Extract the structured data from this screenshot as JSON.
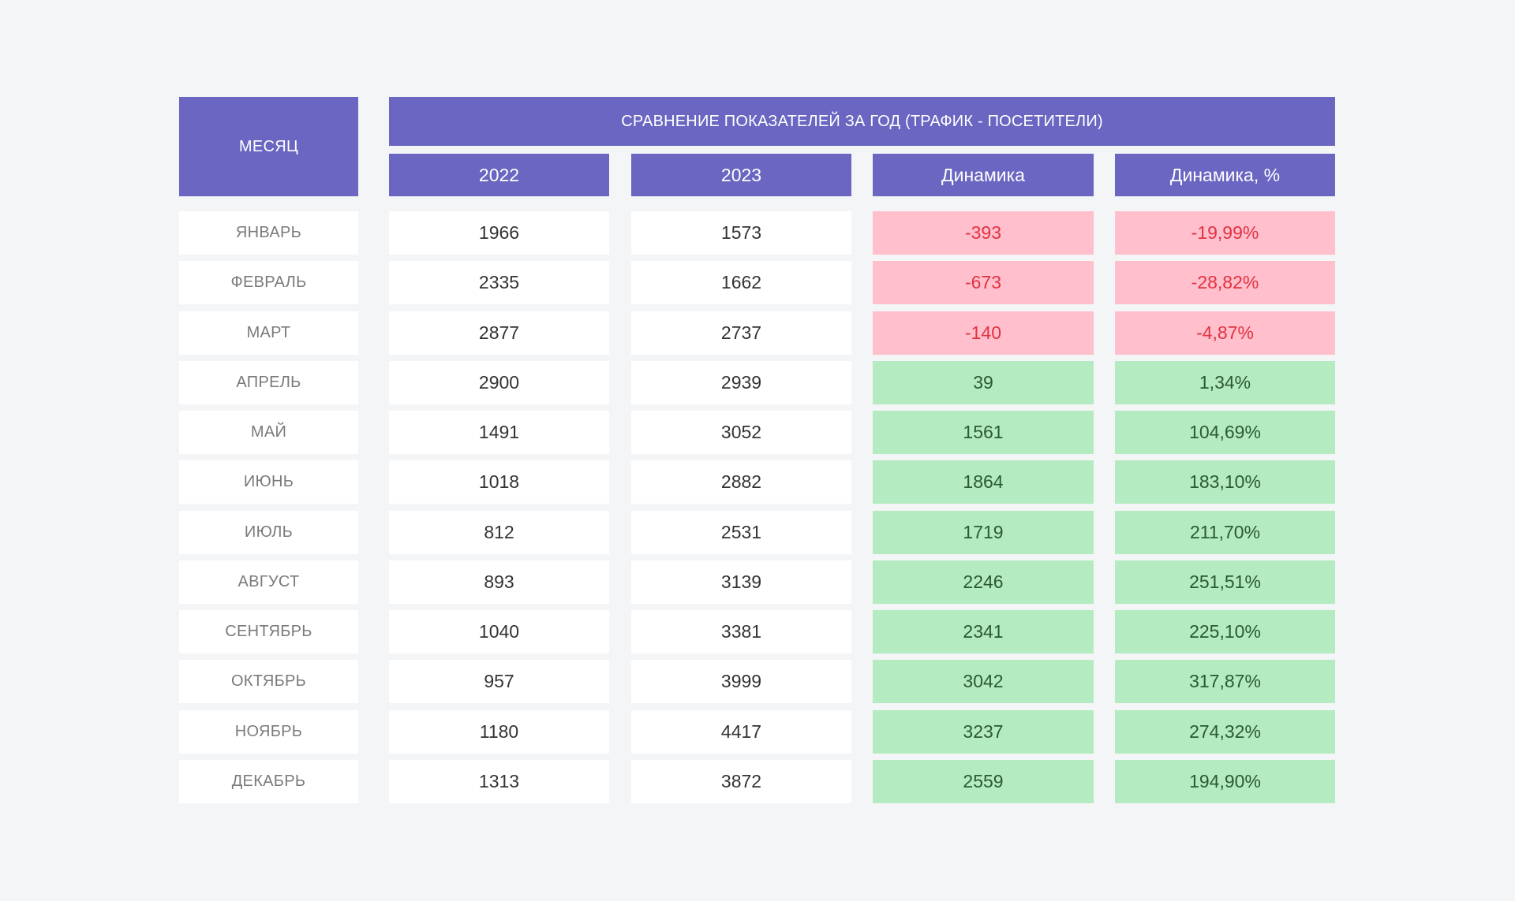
{
  "chart_data": {
    "type": "table",
    "title": "СРАВНЕНИЕ ПОКАЗАТЕЛЕЙ ЗА ГОД (ТРАФИК - ПОСЕТИТЕЛИ)",
    "month_header": "МЕСЯЦ",
    "columns": [
      "2022",
      "2023",
      "Динамика",
      "Динамика, %"
    ],
    "rows": [
      {
        "month": "ЯНВАРЬ",
        "y2022": "1966",
        "y2023": "1573",
        "delta": "-393",
        "delta_pct": "-19,99%",
        "trend": "negative"
      },
      {
        "month": "ФЕВРАЛЬ",
        "y2022": "2335",
        "y2023": "1662",
        "delta": "-673",
        "delta_pct": "-28,82%",
        "trend": "negative"
      },
      {
        "month": "МАРТ",
        "y2022": "2877",
        "y2023": "2737",
        "delta": "-140",
        "delta_pct": "-4,87%",
        "trend": "negative"
      },
      {
        "month": "АПРЕЛЬ",
        "y2022": "2900",
        "y2023": "2939",
        "delta": "39",
        "delta_pct": "1,34%",
        "trend": "positive"
      },
      {
        "month": "МАЙ",
        "y2022": "1491",
        "y2023": "3052",
        "delta": "1561",
        "delta_pct": "104,69%",
        "trend": "positive"
      },
      {
        "month": "ИЮНЬ",
        "y2022": "1018",
        "y2023": "2882",
        "delta": "1864",
        "delta_pct": "183,10%",
        "trend": "positive"
      },
      {
        "month": "ИЮЛЬ",
        "y2022": "812",
        "y2023": "2531",
        "delta": "1719",
        "delta_pct": "211,70%",
        "trend": "positive"
      },
      {
        "month": "АВГУСТ",
        "y2022": "893",
        "y2023": "3139",
        "delta": "2246",
        "delta_pct": "251,51%",
        "trend": "positive"
      },
      {
        "month": "СЕНТЯБРЬ",
        "y2022": "1040",
        "y2023": "3381",
        "delta": "2341",
        "delta_pct": "225,10%",
        "trend": "positive"
      },
      {
        "month": "ОКТЯБРЬ",
        "y2022": "957",
        "y2023": "3999",
        "delta": "3042",
        "delta_pct": "317,87%",
        "trend": "positive"
      },
      {
        "month": "НОЯБРЬ",
        "y2022": "1180",
        "y2023": "4417",
        "delta": "3237",
        "delta_pct": "274,32%",
        "trend": "positive"
      },
      {
        "month": "ДЕКАБРЬ",
        "y2022": "1313",
        "y2023": "3872",
        "delta": "2559",
        "delta_pct": "194,90%",
        "trend": "positive"
      }
    ]
  },
  "colors": {
    "header_bg": "#6a66c1",
    "header_text": "#ffffff",
    "negative_bg": "#ffbfcd",
    "negative_text": "#e2323f",
    "positive_bg": "#b4ebc0",
    "positive_text": "#2b5a2e",
    "cell_bg": "#ffffff",
    "page_bg": "#f4f5f7"
  }
}
